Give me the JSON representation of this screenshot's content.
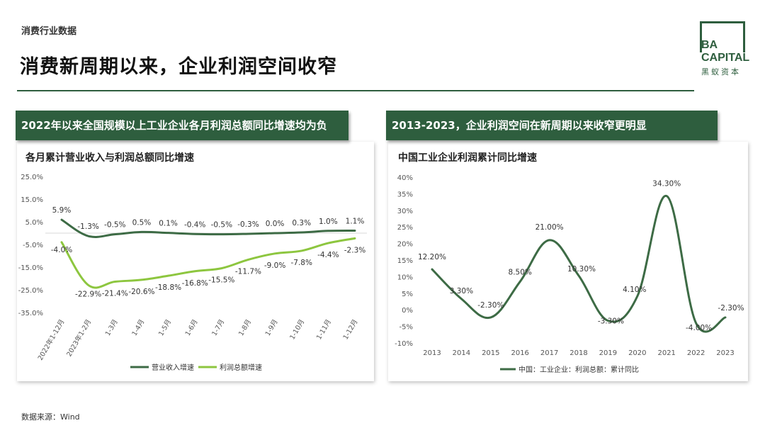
{
  "header": {
    "category": "消费行业数据",
    "title": "消费新周期以来，企业利润空间收窄"
  },
  "logo": {
    "line1": "BA",
    "line2": "CAPITAL",
    "line3": "黑蚁资本"
  },
  "left_panel": {
    "banner": "2022年以来全国规模以上工业企业各月利润总额同比增速均为负",
    "chart_title": "各月累计营业收入与利润总额同比增速"
  },
  "right_panel": {
    "banner": "2013-2023，企业利润空间在新周期以来收窄更明显",
    "chart_title": "中国工业企业利润累计同比增速"
  },
  "footer": {
    "source": "数据来源：Wind"
  },
  "colors": {
    "brand_green": "#2e5e3e",
    "revenue_line": "#3d6b45",
    "profit_line": "#8dc63f",
    "right_line": "#3d6b45"
  },
  "chart_data": [
    {
      "type": "line",
      "title": "各月累计营业收入与利润总额同比增速",
      "categories": [
        "2022年1-12月",
        "2023年1-2月",
        "1-3月",
        "1-4月",
        "1-5月",
        "1-6月",
        "1-7月",
        "1-8月",
        "1-9月",
        "1-10月",
        "1-11月",
        "1-12月"
      ],
      "series": [
        {
          "name": "营业收入增速",
          "values": [
            5.9,
            -1.3,
            -0.5,
            0.5,
            0.1,
            -0.4,
            -0.5,
            -0.3,
            0.0,
            0.3,
            1.0,
            1.1
          ],
          "labels": [
            "5.9%",
            "-1.3%",
            "-0.5%",
            "0.5%",
            "0.1%",
            "-0.4%",
            "-0.5%",
            "-0.3%",
            "0.0%",
            "0.3%",
            "1.0%",
            "1.1%"
          ]
        },
        {
          "name": "利润总额增速",
          "values": [
            -4.0,
            -22.9,
            -21.4,
            -20.6,
            -18.8,
            -16.8,
            -15.5,
            -11.7,
            -9.0,
            -7.8,
            -4.4,
            -2.3
          ],
          "labels": [
            "-4.0%",
            "-22.9%",
            "-21.4%",
            "-20.6%",
            "-18.8%",
            "-16.8%",
            "-15.5%",
            "-11.7%",
            "-9.0%",
            "-7.8%",
            "-4.4%",
            "-2.3%"
          ]
        }
      ],
      "yticks": [
        "25.0%",
        "15.0%",
        "5.0%",
        "-5.0%",
        "-15.0%",
        "-25.0%",
        "-35.0%"
      ],
      "ytick_values": [
        25,
        15,
        5,
        -5,
        -15,
        -25,
        -35
      ],
      "ylim": [
        -35,
        25
      ],
      "legend": "bottom",
      "grid": false
    },
    {
      "type": "line",
      "title": "中国工业企业利润累计同比增速",
      "categories": [
        "2013",
        "2014",
        "2015",
        "2016",
        "2017",
        "2018",
        "2019",
        "2020",
        "2021",
        "2022",
        "2023"
      ],
      "series": [
        {
          "name": "中国：工业企业：利润总额：累计同比",
          "values": [
            12.2,
            3.3,
            -2.3,
            8.5,
            21.0,
            10.3,
            -3.3,
            4.1,
            34.3,
            -4.0,
            -2.3
          ],
          "labels": [
            "12.20%",
            "3.30%",
            "-2.30%",
            "8.50%",
            "21.00%",
            "10.30%",
            "-3.30%",
            "4.10%",
            "34.30%",
            "-4.00%",
            "-2.30%"
          ]
        }
      ],
      "yticks": [
        "40%",
        "35%",
        "30%",
        "25%",
        "20%",
        "15%",
        "10%",
        "5%",
        "0%",
        "-5%",
        "-10%"
      ],
      "ytick_values": [
        40,
        35,
        30,
        25,
        20,
        15,
        10,
        5,
        0,
        -5,
        -10
      ],
      "ylim": [
        -10,
        40
      ],
      "legend": "bottom",
      "grid": false
    }
  ]
}
